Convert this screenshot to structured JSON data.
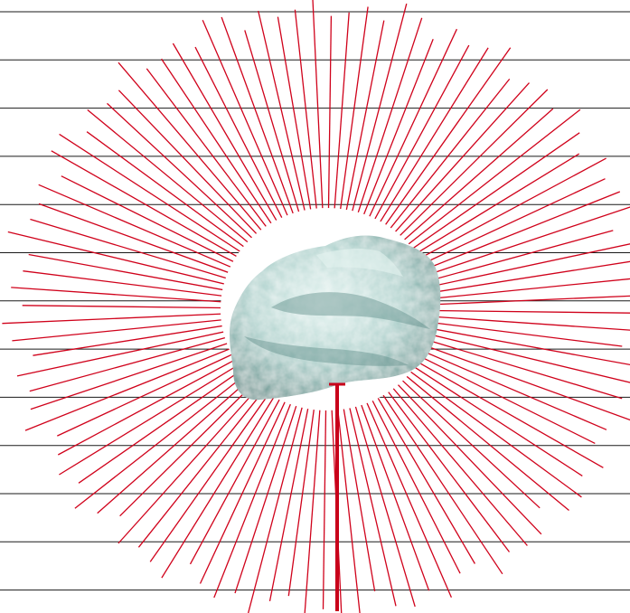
{
  "artwork": {
    "background_color": "#ffffff",
    "ruled_lines": {
      "color": "#1a1a1a",
      "count": 13
    },
    "rays": {
      "color": "#d0021b",
      "count": 108
    },
    "center_disc_color": "#ffffff",
    "stone": {
      "base_color": "#a9cfca",
      "highlight_color": "#e4f3f0",
      "shadow_color": "#5f8f8a"
    },
    "pointer": {
      "color": "#c8001a"
    }
  }
}
